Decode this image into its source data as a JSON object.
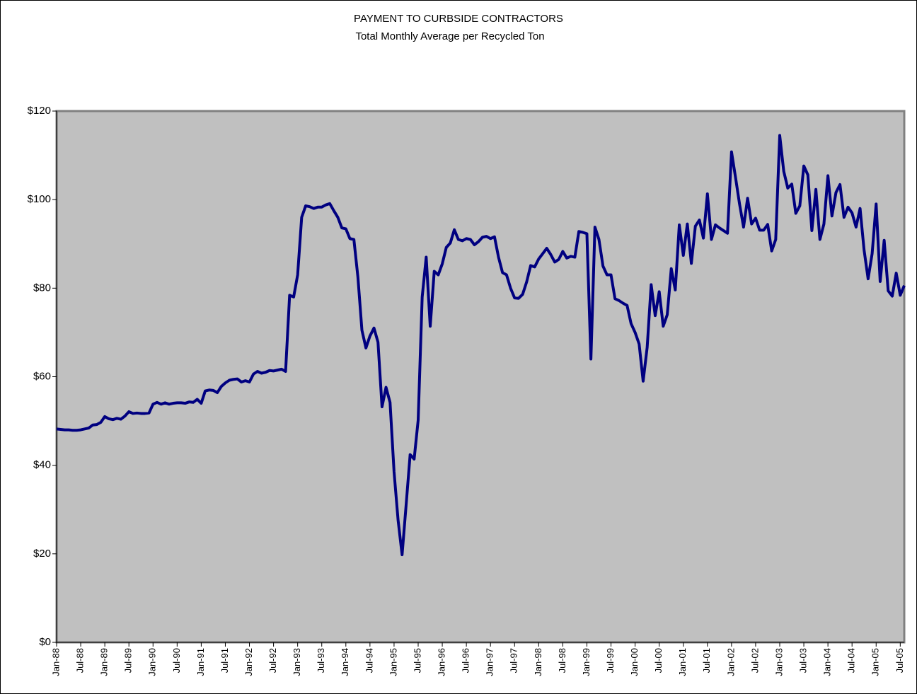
{
  "chart_data": {
    "type": "line",
    "title": "PAYMENT TO CURBSIDE CONTRACTORS",
    "subtitle": "Total Monthly Average per Recycled Ton",
    "color": "#000080",
    "plot_background": "#c0c0c0",
    "ylim": [
      0,
      120
    ],
    "yticks": [
      {
        "value": 0,
        "label": "$0"
      },
      {
        "value": 20,
        "label": "$20"
      },
      {
        "value": 40,
        "label": "$40"
      },
      {
        "value": 60,
        "label": "$60"
      },
      {
        "value": 80,
        "label": "$80"
      },
      {
        "value": 100,
        "label": "$100"
      },
      {
        "value": 120,
        "label": "$120"
      }
    ],
    "categories": [
      "Jan-88",
      null,
      null,
      null,
      null,
      null,
      "Jul-88",
      null,
      null,
      null,
      null,
      null,
      "Jan-89",
      null,
      null,
      null,
      null,
      null,
      "Jul-89",
      null,
      null,
      null,
      null,
      null,
      "Jan-90",
      null,
      null,
      null,
      null,
      null,
      "Jul-90",
      null,
      null,
      null,
      null,
      null,
      "Jan-91",
      null,
      null,
      null,
      null,
      null,
      "Jul-91",
      null,
      null,
      null,
      null,
      null,
      "Jan-92",
      null,
      null,
      null,
      null,
      null,
      "Jul-92",
      null,
      null,
      null,
      null,
      null,
      "Jan-93",
      null,
      null,
      null,
      null,
      null,
      "Jul-93",
      null,
      null,
      null,
      null,
      null,
      "Jan-94",
      null,
      null,
      null,
      null,
      null,
      "Jul-94",
      null,
      null,
      null,
      null,
      null,
      "Jan-95",
      null,
      null,
      null,
      null,
      null,
      "Jul-95",
      null,
      null,
      null,
      null,
      null,
      "Jan-96",
      null,
      null,
      null,
      null,
      null,
      "Jul-96",
      null,
      null,
      null,
      null,
      null,
      "Jan-97",
      null,
      null,
      null,
      null,
      null,
      "Jul-97",
      null,
      null,
      null,
      null,
      null,
      "Jan-98",
      null,
      null,
      null,
      null,
      null,
      "Jul-98",
      null,
      null,
      null,
      null,
      null,
      "Jan-99",
      null,
      null,
      null,
      null,
      null,
      "Jul-99",
      null,
      null,
      null,
      null,
      null,
      "Jan-00",
      null,
      null,
      null,
      null,
      null,
      "Jul-00",
      null,
      null,
      null,
      null,
      null,
      "Jan-01",
      null,
      null,
      null,
      null,
      null,
      "Jul-01",
      null,
      null,
      null,
      null,
      null,
      "Jan-02",
      null,
      null,
      null,
      null,
      null,
      "Jul-02",
      null,
      null,
      null,
      null,
      null,
      "Jan-03",
      null,
      null,
      null,
      null,
      null,
      "Jul-03",
      null,
      null,
      null,
      null,
      null,
      "Jan-04",
      null,
      null,
      null,
      null,
      null,
      "Jul-04",
      null,
      null,
      null,
      null,
      null,
      "Jan-05",
      null,
      null,
      null,
      null,
      null,
      "Jul-05",
      null
    ],
    "values": [
      48.2,
      48.1,
      48.0,
      48.0,
      47.9,
      47.9,
      48.0,
      48.2,
      48.4,
      49.1,
      49.2,
      49.7,
      51.0,
      50.5,
      50.3,
      50.6,
      50.4,
      51.1,
      52.1,
      51.7,
      51.8,
      51.7,
      51.7,
      51.8,
      53.8,
      54.2,
      53.8,
      54.1,
      53.8,
      54.0,
      54.1,
      54.1,
      54.0,
      54.3,
      54.2,
      54.9,
      54.0,
      56.8,
      57.0,
      56.9,
      56.4,
      57.8,
      58.6,
      59.2,
      59.4,
      59.5,
      58.8,
      59.1,
      58.8,
      60.6,
      61.2,
      60.8,
      61.0,
      61.4,
      61.3,
      61.5,
      61.7,
      61.2,
      78.4,
      78.0,
      83.0,
      96.0,
      98.6,
      98.4,
      98.0,
      98.3,
      98.3,
      98.8,
      99.1,
      97.5,
      96.0,
      93.6,
      93.4,
      91.2,
      91.0,
      82.5,
      70.5,
      66.5,
      69.2,
      71.0,
      67.8,
      53.2,
      57.6,
      54.2,
      38.5,
      27.6,
      19.8,
      31.0,
      42.4,
      41.4,
      50.2,
      78.0,
      87.0,
      71.4,
      83.8,
      83.0,
      85.5,
      89.2,
      90.2,
      93.2,
      91.0,
      90.7,
      91.2,
      91.0,
      89.8,
      90.5,
      91.5,
      91.7,
      91.2,
      91.6,
      87.0,
      83.5,
      83.0,
      80.0,
      77.8,
      77.7,
      78.6,
      81.4,
      85.1,
      84.8,
      86.6,
      87.8,
      89.0,
      87.6,
      85.9,
      86.5,
      88.3,
      86.8,
      87.2,
      87.0,
      92.8,
      92.6,
      92.3,
      64.0,
      93.8,
      91.0,
      85.0,
      83.0,
      83.0,
      77.6,
      77.2,
      76.6,
      76.1,
      72.0,
      70.0,
      67.4,
      59.0,
      66.6,
      80.8,
      73.8,
      79.2,
      71.4,
      74.0,
      84.4,
      79.6,
      94.3,
      87.4,
      94.5,
      85.6,
      94.0,
      95.4,
      91.3,
      101.3,
      91.0,
      94.3,
      93.6,
      93.0,
      92.4,
      110.8,
      105.0,
      99.0,
      93.8,
      100.3,
      94.5,
      95.8,
      93.1,
      93.1,
      94.4,
      88.4,
      91.0,
      114.5,
      106.4,
      102.6,
      103.5,
      96.9,
      98.6,
      107.6,
      105.6,
      93.0,
      102.3,
      91.0,
      94.5,
      105.4,
      96.3,
      101.6,
      103.4,
      96.0,
      98.3,
      97.0,
      93.8,
      98.0,
      88.6,
      82.1,
      87.8,
      99.0,
      81.5,
      90.8,
      79.4,
      78.2,
      83.4,
      78.4,
      80.6
    ]
  }
}
